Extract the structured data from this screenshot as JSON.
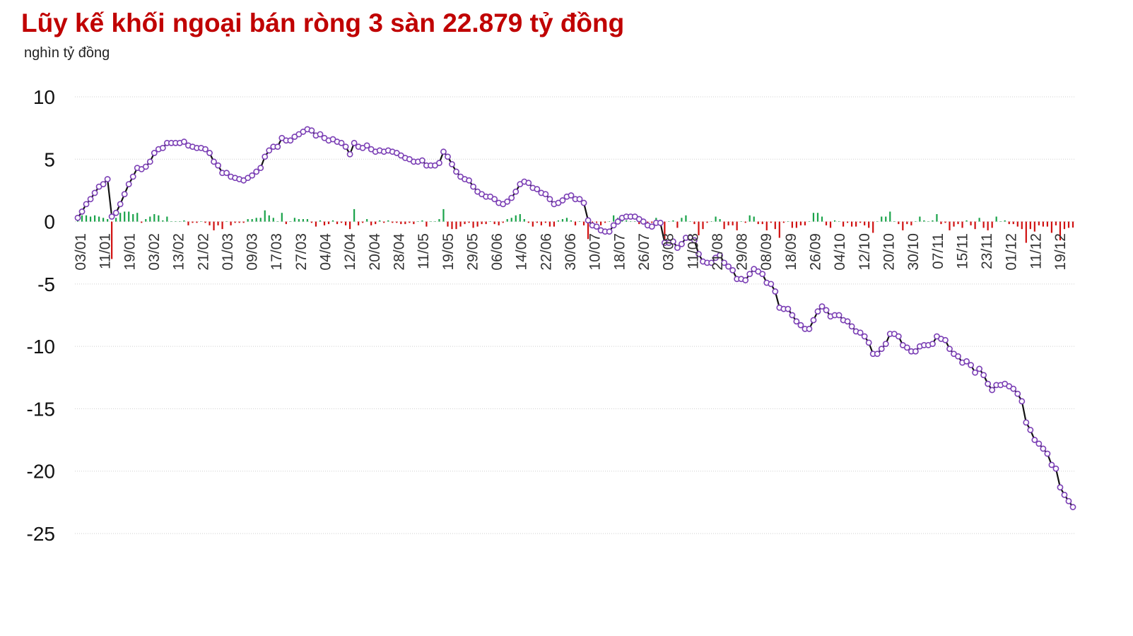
{
  "title": "Lũy kế khối ngoại bán ròng 3 sàn 22.879 tỷ đồng",
  "unit": "nghìn tỷ đồng",
  "colors": {
    "title": "#c00000",
    "line": "#111111",
    "marker_stroke": "#7b3fb5",
    "marker_fill": "#ffffff",
    "buy": "#1aa34a",
    "sell": "#d01010"
  },
  "chart_data": {
    "type": "line",
    "title": "Lũy kế khối ngoại bán ròng 3 sàn 22.879 tỷ đồng",
    "ylabel": "nghìn tỷ đồng",
    "ylim": [
      -25,
      10
    ],
    "yticks": [
      10,
      5,
      0,
      -5,
      -10,
      -15,
      -20,
      -25
    ],
    "grid": true,
    "x_tick_labels": [
      "03/01",
      "11/01",
      "19/01",
      "03/02",
      "13/02",
      "21/02",
      "01/03",
      "09/03",
      "17/03",
      "27/03",
      "04/04",
      "12/04",
      "20/04",
      "28/04",
      "11/05",
      "19/05",
      "29/05",
      "06/06",
      "14/06",
      "22/06",
      "30/06",
      "10/07",
      "18/07",
      "26/07",
      "03/08",
      "11/08",
      "21/08",
      "29/08",
      "08/09",
      "18/09",
      "26/09",
      "04/10",
      "12/10",
      "20/10",
      "30/10",
      "07/11",
      "15/11",
      "23/11",
      "01/12",
      "11/12",
      "19/12"
    ],
    "series": [
      {
        "name": "",
        "kind": "line",
        "values": [
          0.3,
          0.8,
          1.4,
          1.8,
          2.3,
          2.8,
          3.0,
          3.4,
          0.4,
          0.7,
          1.4,
          2.2,
          3.0,
          3.6,
          4.3,
          4.2,
          4.4,
          4.8,
          5.5,
          5.8,
          5.9,
          6.3,
          6.3,
          6.3,
          6.3,
          6.4,
          6.1,
          6.0,
          5.9,
          5.9,
          5.8,
          5.5,
          4.8,
          4.5,
          3.9,
          3.9,
          3.6,
          3.5,
          3.4,
          3.3,
          3.5,
          3.7,
          4.0,
          4.3,
          5.2,
          5.7,
          6.0,
          6.0,
          6.7,
          6.5,
          6.5,
          6.8,
          7.0,
          7.2,
          7.4,
          7.3,
          6.9,
          7.0,
          6.7,
          6.5,
          6.6,
          6.4,
          6.3,
          6.0,
          5.4,
          6.3,
          6.0,
          5.9,
          6.1,
          5.8,
          5.6,
          5.7,
          5.6,
          5.7,
          5.6,
          5.5,
          5.3,
          5.1,
          5.0,
          4.8,
          4.8,
          4.9,
          4.5,
          4.5,
          4.5,
          4.7,
          5.6,
          5.2,
          4.6,
          4.0,
          3.6,
          3.4,
          3.3,
          2.8,
          2.4,
          2.2,
          2.0,
          2.0,
          1.8,
          1.5,
          1.4,
          1.6,
          1.9,
          2.4,
          3.0,
          3.2,
          3.1,
          2.7,
          2.6,
          2.3,
          2.2,
          1.8,
          1.4,
          1.5,
          1.7,
          2.0,
          2.1,
          1.8,
          1.8,
          1.5,
          0.1,
          -0.3,
          -0.4,
          -0.7,
          -0.8,
          -0.8,
          -0.3,
          0.0,
          0.3,
          0.4,
          0.4,
          0.4,
          0.2,
          0.0,
          -0.3,
          -0.4,
          -0.1,
          -0.1,
          -1.7,
          -1.7,
          -1.6,
          -2.1,
          -1.8,
          -1.3,
          -1.3,
          -1.5,
          -2.6,
          -3.2,
          -3.3,
          -3.3,
          -2.9,
          -2.7,
          -3.3,
          -3.6,
          -3.9,
          -4.6,
          -4.6,
          -4.7,
          -4.2,
          -3.8,
          -4.0,
          -4.2,
          -4.9,
          -5.0,
          -5.6,
          -6.9,
          -7.0,
          -7.0,
          -7.5,
          -8.0,
          -8.3,
          -8.6,
          -8.6,
          -7.9,
          -7.2,
          -6.8,
          -7.1,
          -7.6,
          -7.5,
          -7.5,
          -7.9,
          -8.0,
          -8.4,
          -8.8,
          -8.9,
          -9.2,
          -9.7,
          -10.6,
          -10.6,
          -10.2,
          -9.8,
          -9.0,
          -9.0,
          -9.2,
          -9.9,
          -10.1,
          -10.4,
          -10.4,
          -10.0,
          -9.9,
          -9.9,
          -9.8,
          -9.2,
          -9.4,
          -9.5,
          -10.2,
          -10.6,
          -10.8,
          -11.3,
          -11.2,
          -11.5,
          -12.1,
          -11.8,
          -12.3,
          -13.0,
          -13.5,
          -13.1,
          -13.1,
          -13.0,
          -13.2,
          -13.4,
          -13.8,
          -14.4,
          -16.1,
          -16.7,
          -17.5,
          -17.8,
          -18.2,
          -18.6,
          -19.5,
          -19.8,
          -21.3,
          -21.9,
          -22.4,
          -22.879
        ]
      },
      {
        "name": "",
        "kind": "bar",
        "values": [
          0.2,
          0.5,
          0.5,
          0.4,
          0.5,
          0.4,
          0.3,
          0.2,
          -3.0,
          0.3,
          0.7,
          0.8,
          0.8,
          0.6,
          0.7,
          -0.1,
          0.2,
          0.4,
          0.6,
          0.5,
          0.1,
          0.4,
          0.0,
          0.0,
          0.0,
          0.1,
          -0.3,
          -0.1,
          -0.1,
          0.0,
          -0.1,
          -0.3,
          -0.7,
          -0.3,
          -0.6,
          0.0,
          -0.3,
          -0.1,
          -0.1,
          -0.1,
          0.2,
          0.2,
          0.3,
          0.3,
          0.9,
          0.5,
          0.3,
          0.0,
          0.7,
          -0.2,
          0.0,
          0.3,
          0.2,
          0.2,
          0.2,
          -0.1,
          -0.4,
          0.1,
          -0.3,
          -0.2,
          0.1,
          -0.2,
          -0.1,
          -0.3,
          -0.6,
          1.0,
          -0.3,
          -0.1,
          0.2,
          -0.3,
          -0.2,
          0.1,
          -0.1,
          0.1,
          -0.1,
          -0.1,
          -0.2,
          -0.2,
          -0.1,
          -0.2,
          0.0,
          0.1,
          -0.4,
          0.0,
          0.0,
          0.2,
          1.0,
          -0.4,
          -0.6,
          -0.6,
          -0.4,
          -0.2,
          -0.1,
          -0.5,
          -0.4,
          -0.2,
          -0.2,
          0.0,
          -0.2,
          -0.3,
          -0.1,
          0.2,
          0.3,
          0.5,
          0.6,
          0.2,
          -0.1,
          -0.4,
          -0.1,
          -0.3,
          -0.1,
          -0.4,
          -0.4,
          0.1,
          0.2,
          0.3,
          0.1,
          -0.3,
          0.0,
          -0.3,
          -1.4,
          -0.4,
          -0.1,
          -0.3,
          -0.1,
          0.0,
          0.5,
          0.3,
          0.3,
          0.1,
          0.0,
          0.0,
          -0.2,
          -0.2,
          -0.3,
          -0.1,
          0.3,
          0.0,
          -1.6,
          0.0,
          0.1,
          -0.5,
          0.3,
          0.5,
          0.0,
          -0.2,
          -1.1,
          -0.6,
          -0.1,
          0.0,
          0.4,
          0.2,
          -0.6,
          -0.3,
          -0.3,
          -0.7,
          0.0,
          -0.1,
          0.5,
          0.4,
          -0.2,
          -0.2,
          -0.7,
          -0.1,
          -0.6,
          -1.3,
          -0.1,
          0.0,
          -0.5,
          -0.5,
          -0.3,
          -0.3,
          0.0,
          0.7,
          0.7,
          0.4,
          -0.3,
          -0.5,
          0.1,
          0.0,
          -0.4,
          -0.1,
          -0.4,
          -0.4,
          -0.1,
          -0.3,
          -0.5,
          -0.9,
          0.0,
          0.4,
          0.4,
          0.8,
          0.0,
          -0.2,
          -0.7,
          -0.2,
          -0.3,
          0.0,
          0.4,
          0.1,
          0.0,
          0.1,
          0.6,
          -0.2,
          -0.1,
          -0.7,
          -0.4,
          -0.2,
          -0.5,
          0.1,
          -0.3,
          -0.6,
          0.3,
          -0.5,
          -0.7,
          -0.5,
          0.4,
          0.0,
          0.1,
          -0.2,
          -0.2,
          -0.4,
          -0.6,
          -1.7,
          -0.6,
          -0.8,
          -0.3,
          -0.4,
          -0.4,
          -0.9,
          -0.3,
          -1.5,
          -0.6,
          -0.5,
          -0.479
        ]
      }
    ]
  }
}
